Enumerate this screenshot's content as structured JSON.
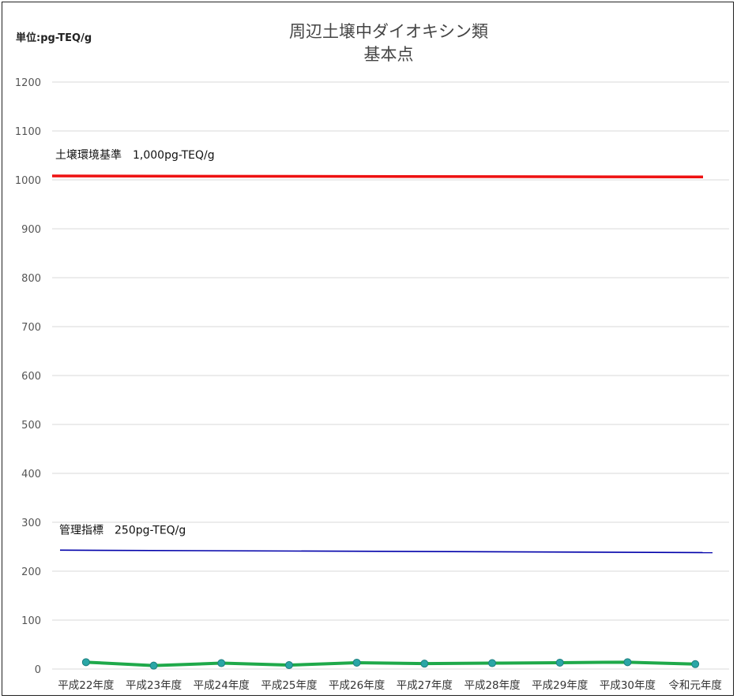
{
  "chart_data": {
    "type": "line",
    "title": "周辺土壌中ダイオキシン類",
    "subtitle": "基本点",
    "unit_label": "単位:pg-TEQ/g",
    "categories": [
      "平成22年度",
      "平成23年度",
      "平成24年度",
      "平成25年度",
      "平成26年度",
      "平成27年度",
      "平成28年度",
      "平成29年度",
      "平成30年度",
      "令和元年度"
    ],
    "ylim": [
      0,
      1200
    ],
    "yticks": [
      0,
      100,
      200,
      300,
      400,
      500,
      600,
      700,
      800,
      900,
      1000,
      1100,
      1200
    ],
    "grid": true,
    "series": [
      {
        "values": [
          14,
          7,
          12,
          8,
          13,
          11,
          12,
          13,
          14,
          10
        ],
        "color": "#1fa94a",
        "marker_color": "#2aa6a6"
      }
    ],
    "reference_lines": [
      {
        "label": "土壌環境基準　1,000pg-TEQ/g",
        "value_start": 1008,
        "value_end": 1006,
        "color": "#ee1111"
      },
      {
        "label": "管理指標　250pg-TEQ/g",
        "value_start": 243,
        "value_end": 238,
        "color": "#0000aa"
      }
    ]
  }
}
